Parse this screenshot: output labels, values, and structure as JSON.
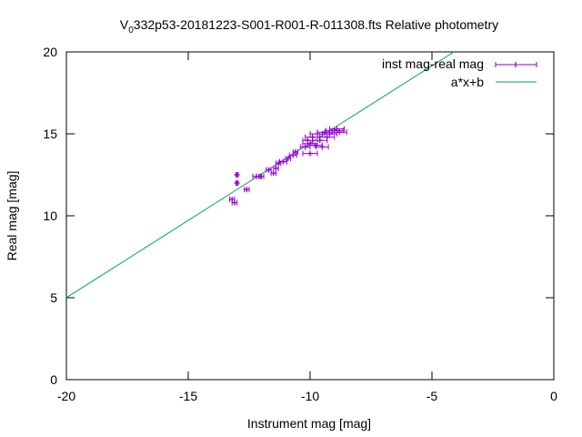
{
  "chart_data": {
    "type": "scatter",
    "title_main": "V",
    "title_sub": "0",
    "title_rest": "332p53-20181223-S001-R001-R-011308.fts Relative photometry",
    "xlabel": "Instrument mag [mag]",
    "ylabel": "Real mag [mag]",
    "xlim": [
      -20,
      0
    ],
    "ylim": [
      0,
      20
    ],
    "xticks": [
      -20,
      -15,
      -10,
      -5,
      0
    ],
    "yticks": [
      0,
      5,
      10,
      15,
      20
    ],
    "grid": false,
    "legend_position": "top-right",
    "series": [
      {
        "name": "inst mag-real mag",
        "style": "points-with-xerror",
        "color": "#9400d3",
        "points": [
          {
            "x": -13.2,
            "y": 11.0,
            "xerr": 0.1
          },
          {
            "x": -13.1,
            "y": 10.8,
            "xerr": 0.1
          },
          {
            "x": -13.0,
            "y": 12.5,
            "xerr": 0.05
          },
          {
            "x": -13.0,
            "y": 12.0,
            "xerr": 0.05
          },
          {
            "x": -12.6,
            "y": 11.6,
            "xerr": 0.1
          },
          {
            "x": -12.2,
            "y": 12.4,
            "xerr": 0.15
          },
          {
            "x": -12.0,
            "y": 12.4,
            "xerr": 0.1
          },
          {
            "x": -11.7,
            "y": 12.8,
            "xerr": 0.1
          },
          {
            "x": -11.5,
            "y": 12.6,
            "xerr": 0.1
          },
          {
            "x": -11.4,
            "y": 12.9,
            "xerr": 0.1
          },
          {
            "x": -11.3,
            "y": 13.2,
            "xerr": 0.1
          },
          {
            "x": -11.1,
            "y": 13.3,
            "xerr": 0.15
          },
          {
            "x": -10.9,
            "y": 13.5,
            "xerr": 0.1
          },
          {
            "x": -10.7,
            "y": 13.7,
            "xerr": 0.15
          },
          {
            "x": -10.6,
            "y": 13.9,
            "xerr": 0.1
          },
          {
            "x": -10.2,
            "y": 14.2,
            "xerr": 0.2
          },
          {
            "x": -10.1,
            "y": 14.6,
            "xerr": 0.2
          },
          {
            "x": -10.0,
            "y": 13.8,
            "xerr": 0.3
          },
          {
            "x": -10.0,
            "y": 14.4,
            "xerr": 0.3
          },
          {
            "x": -9.9,
            "y": 14.8,
            "xerr": 0.3
          },
          {
            "x": -9.8,
            "y": 14.3,
            "xerr": 0.3
          },
          {
            "x": -9.7,
            "y": 15.0,
            "xerr": 0.3
          },
          {
            "x": -9.6,
            "y": 14.6,
            "xerr": 0.3
          },
          {
            "x": -9.5,
            "y": 14.2,
            "xerr": 0.25
          },
          {
            "x": -9.4,
            "y": 15.1,
            "xerr": 0.3
          },
          {
            "x": -9.3,
            "y": 14.8,
            "xerr": 0.3
          },
          {
            "x": -9.2,
            "y": 15.0,
            "xerr": 0.3
          },
          {
            "x": -9.0,
            "y": 15.2,
            "xerr": 0.35
          },
          {
            "x": -8.9,
            "y": 15.3,
            "xerr": 0.3
          },
          {
            "x": -8.8,
            "y": 15.1,
            "xerr": 0.3
          }
        ]
      },
      {
        "name": "a*x+b",
        "style": "line",
        "color": "#009e73",
        "line": {
          "x": [
            -20,
            -4.1
          ],
          "y": [
            5.0,
            20.0
          ]
        }
      }
    ]
  }
}
